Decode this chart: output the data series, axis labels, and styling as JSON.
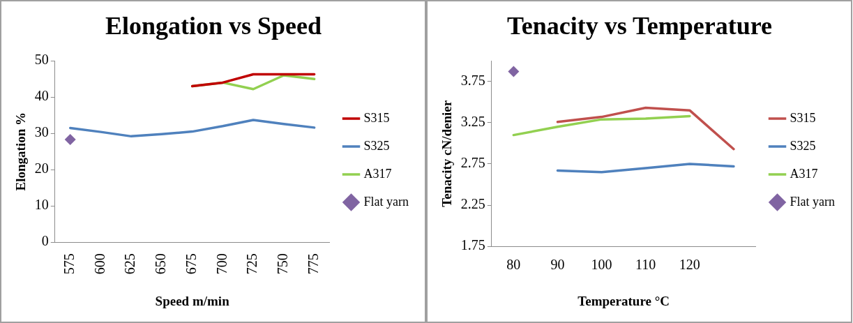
{
  "chart_data": [
    {
      "type": "line",
      "title": "Elongation vs Speed",
      "xlabel": "Speed m/min",
      "ylabel": "Elongation %",
      "categories": [
        "575",
        "600",
        "625",
        "650",
        "675",
        "700",
        "725",
        "750",
        "775"
      ],
      "ylim": [
        0,
        50
      ],
      "yticks": [
        0,
        10,
        20,
        30,
        40,
        50
      ],
      "grid": false,
      "legend": "right",
      "line_style": "solid",
      "series": [
        {
          "name": "S315",
          "color": "#c00000",
          "marker": "none",
          "values": [
            null,
            null,
            null,
            null,
            43,
            44,
            46.3,
            46.3,
            46.3
          ]
        },
        {
          "name": "S325",
          "color": "#4f81bd",
          "marker": "none",
          "values": [
            31.5,
            30.4,
            29.2,
            29.8,
            30.5,
            32,
            33.7,
            32.6,
            31.6
          ]
        },
        {
          "name": "A317",
          "color": "#92d050",
          "marker": "none",
          "values": [
            null,
            null,
            null,
            null,
            43,
            44,
            42.2,
            46,
            45
          ]
        },
        {
          "name": "Flat yarn",
          "color": "#8064a2",
          "marker": "diamond",
          "values": [
            28.3,
            null,
            null,
            null,
            null,
            null,
            null,
            null,
            null
          ]
        }
      ]
    },
    {
      "type": "line",
      "title": "Tenacity vs Temperature",
      "xlabel": "Temperature °C",
      "ylabel": "Tenacity cN/denier",
      "categories": [
        "80",
        "90",
        "100",
        "110",
        "120",
        null
      ],
      "ylim": [
        1.75,
        4
      ],
      "yticks": [
        1.75,
        2.25,
        2.75,
        3.25,
        3.75
      ],
      "grid": false,
      "legend": "right",
      "line_style": "solid",
      "series": [
        {
          "name": "S315",
          "color": "#c0504d",
          "marker": "none",
          "values": [
            null,
            3.26,
            3.32,
            3.43,
            3.4,
            2.93
          ]
        },
        {
          "name": "S325",
          "color": "#4f81bd",
          "marker": "none",
          "values": [
            null,
            2.67,
            2.65,
            2.7,
            2.75,
            2.72
          ]
        },
        {
          "name": "A317",
          "color": "#92d050",
          "marker": "none",
          "values": [
            3.1,
            3.2,
            3.29,
            3.3,
            3.33,
            null
          ]
        },
        {
          "name": "Flat yarn",
          "color": "#8064a2",
          "marker": "diamond",
          "values": [
            3.87,
            null,
            null,
            null,
            null,
            null
          ]
        }
      ]
    }
  ]
}
